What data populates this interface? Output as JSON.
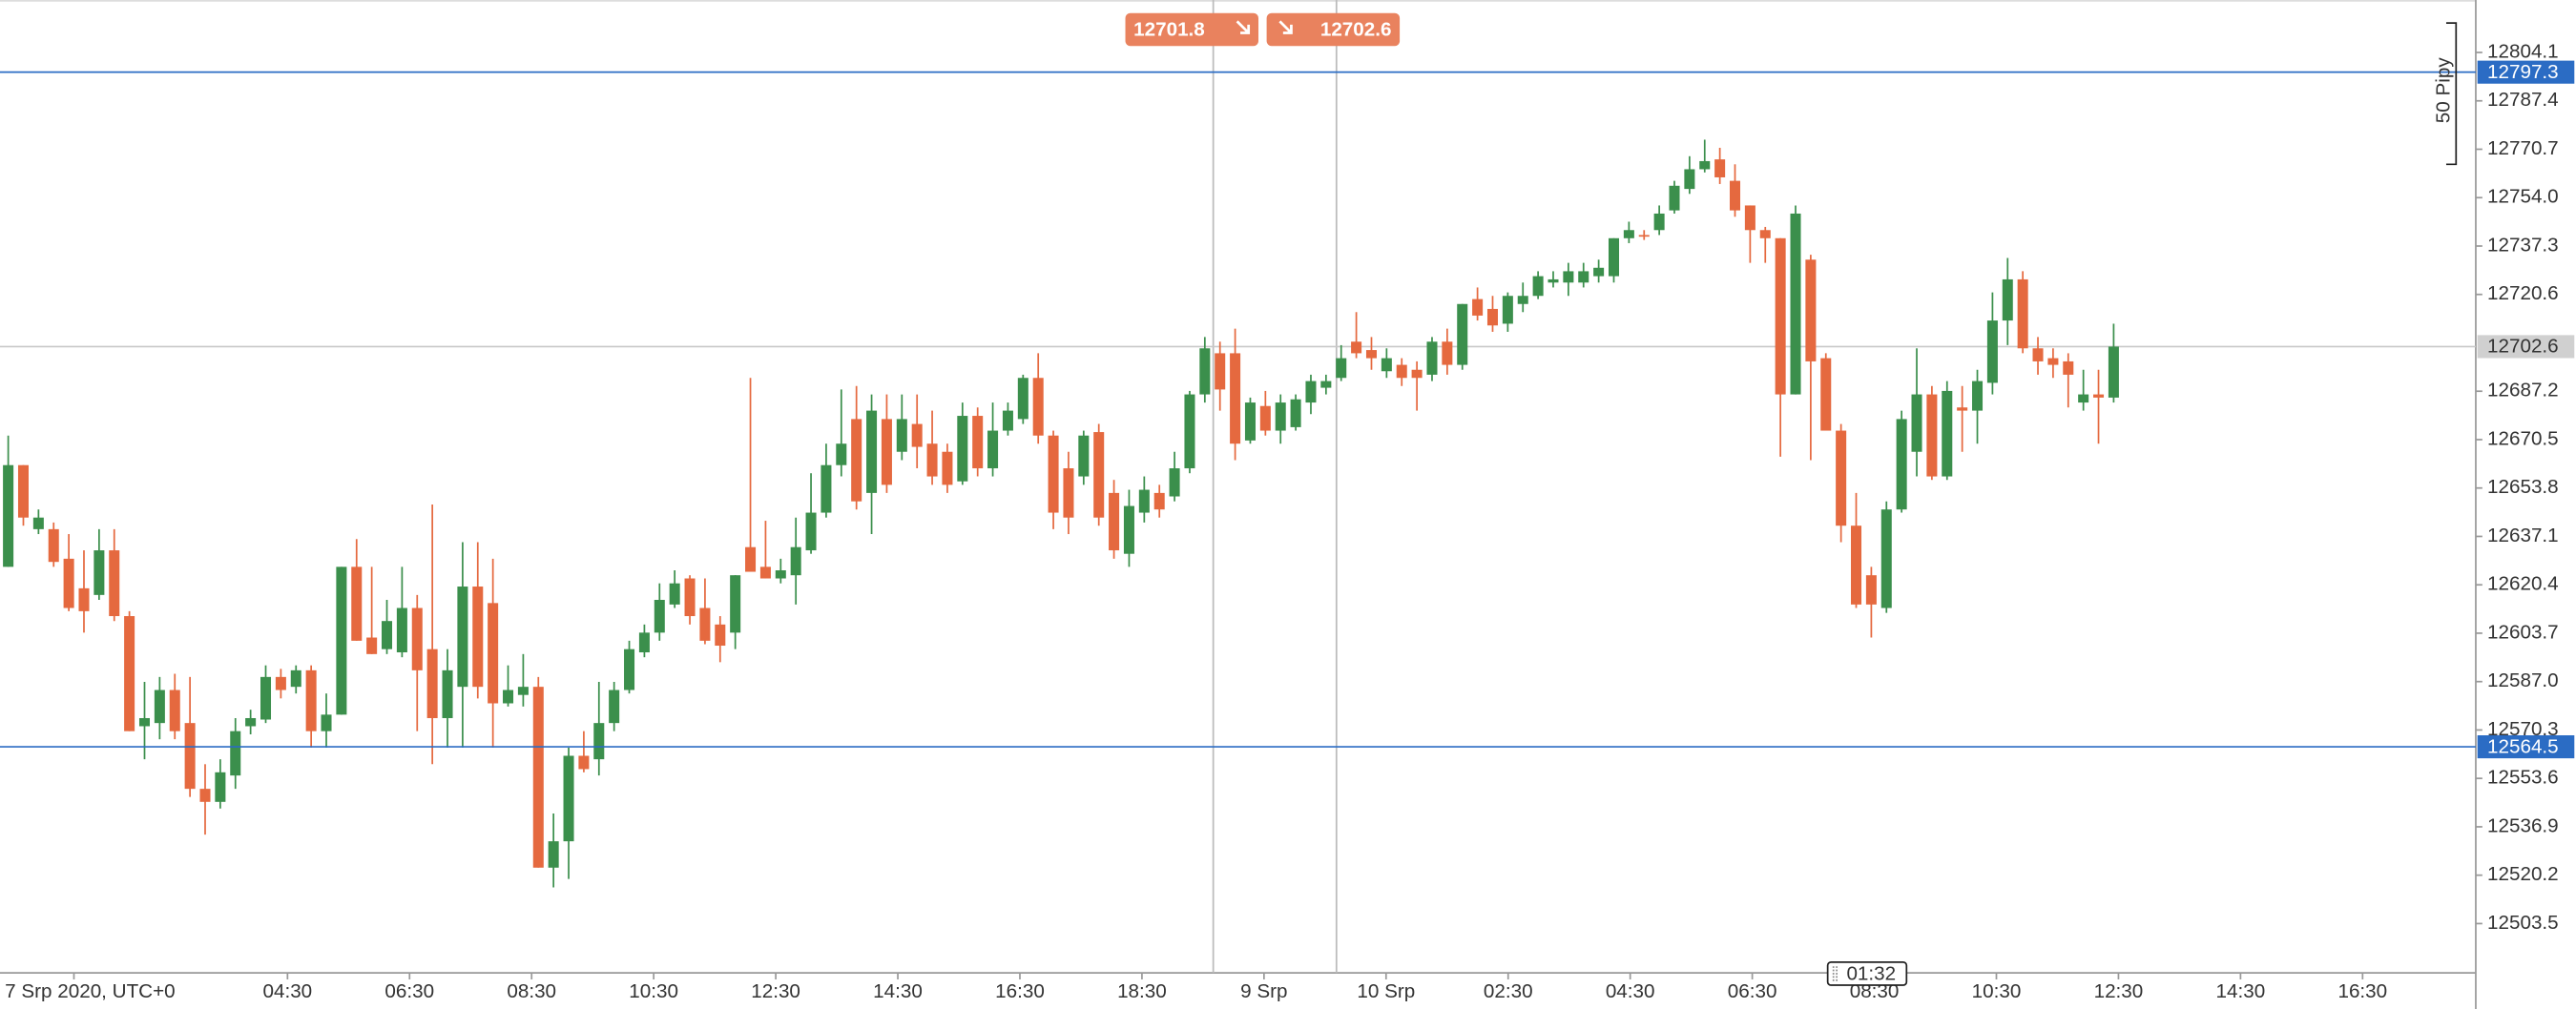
{
  "chart_data": {
    "type": "candlestick",
    "up_color": "#3b8f4c",
    "down_color": "#e5693f",
    "ylim": [
      12486.5,
      12822.2
    ],
    "yticks": [
      12804.1,
      12787.4,
      12770.7,
      {
        "value": 12754,
        "label": "12754.0"
      },
      12737.3,
      12720.6,
      12687.2,
      12670.5,
      12653.8,
      12637.1,
      12620.4,
      12603.7,
      {
        "value": 12587,
        "label": "12587.0"
      },
      12570.3,
      12553.6,
      12536.9,
      12520.2,
      12503.5
    ],
    "x_labels": [
      "7 Srp 2020, UTC+0",
      "04:30",
      "06:30",
      "08:30",
      "10:30",
      "12:30",
      "14:30",
      "16:30",
      "18:30",
      "9 Srp",
      "10 Srp",
      "02:30",
      "04:30",
      "06:30",
      "08:30",
      "10:30",
      "12:30",
      "14:30",
      "16:30"
    ],
    "levels": [
      {
        "value": 12797.3,
        "color": "#2b6cc4"
      },
      {
        "value": 12564.5,
        "color": "#2b6cc4"
      }
    ],
    "last_price": 12702.6,
    "sell_price": 12701.8,
    "buy_price": 12702.6,
    "ruler_label": "50 Pipy",
    "cursor_time": "01:32",
    "open": [
      12626.6,
      12661.7,
      12639.6,
      12639.6,
      12629.4,
      12619.2,
      12616.9,
      12632.3,
      12609.6,
      12571.6,
      12572.7,
      12584.1,
      12572.7,
      12550.0,
      12545.5,
      12554.6,
      12571.6,
      12573.9,
      12588.6,
      12585.2,
      12590.9,
      12569.9,
      12575.6,
      12626.6,
      12602.2,
      12598.2,
      12597.1,
      12612.4,
      12598.2,
      12574.4,
      12585.2,
      12619.8,
      12614.1,
      12579.5,
      12582.4,
      12585.2,
      12522.8,
      12531.9,
      12561.4,
      12560.2,
      12572.7,
      12584.1,
      12597.1,
      12603.9,
      12613.6,
      12622.6,
      12612.4,
      12606.7,
      12603.9,
      12633.4,
      12626.6,
      12622.6,
      12623.7,
      12632.3,
      12645.3,
      12661.7,
      12677.6,
      12652.1,
      12677.6,
      12666.3,
      12675.9,
      12669.1,
      12666.3,
      12656.1,
      12678.7,
      12660.6,
      12673.6,
      12677.6,
      12691.8,
      12671.9,
      12660.6,
      12657.8,
      12673.1,
      12652.1,
      12631.1,
      12645.3,
      12652.1,
      12650.9,
      12660.6,
      12686.1,
      12700.3,
      12700.3,
      12670.2,
      12682.1,
      12673.6,
      12674.8,
      12683.3,
      12688.4,
      12691.8,
      12704.3,
      12701.4,
      12694.1,
      12696.3,
      12694.6,
      12692.9,
      12704.3,
      12696.3,
      12719.0,
      12715.6,
      12710.5,
      12717.3,
      12720.1,
      12724.7,
      12724.7,
      12724.7,
      12726.9,
      12726.9,
      12740.0,
      12741.1,
      12742.8,
      12749.6,
      12757.0,
      12763.8,
      12767.2,
      12759.8,
      12751.3,
      12742.8,
      12740.0,
      12686.1,
      12732.6,
      12698.6,
      12673.6,
      12640.8,
      12623.7,
      12612.4,
      12646.4,
      12666.3,
      12686.1,
      12657.8,
      12681.6,
      12680.5,
      12690.1,
      12711.6,
      12725.8,
      12702.0,
      12698.6,
      12697.5,
      12683.3,
      12686.1,
      12685.0
    ],
    "high": [
      12671.9,
      12661.7,
      12646.4,
      12641.9,
      12637.9,
      12632.3,
      12639.6,
      12639.6,
      12611.3,
      12586.9,
      12588.6,
      12589.7,
      12588.6,
      12558.5,
      12560.2,
      12574.4,
      12577.3,
      12592.6,
      12591.4,
      12592.6,
      12592.6,
      12582.9,
      12626.6,
      12636.2,
      12626.6,
      12615.2,
      12626.6,
      12616.9,
      12648.1,
      12598.2,
      12635.1,
      12635.1,
      12629.4,
      12592.6,
      12596.5,
      12588.6,
      12541.5,
      12564.2,
      12569.9,
      12586.9,
      12586.9,
      12601.1,
      12606.7,
      12620.9,
      12625.4,
      12623.7,
      12622.6,
      12609.6,
      12623.7,
      12691.8,
      12642.5,
      12629.4,
      12643.6,
      12658.9,
      12669.1,
      12687.8,
      12689.0,
      12686.1,
      12686.1,
      12686.1,
      12686.1,
      12680.5,
      12669.1,
      12683.3,
      12681.6,
      12683.3,
      12683.3,
      12692.9,
      12700.3,
      12673.6,
      12666.3,
      12673.6,
      12675.9,
      12656.6,
      12653.2,
      12657.8,
      12654.9,
      12666.3,
      12687.3,
      12705.9,
      12704.3,
      12708.8,
      12685.0,
      12687.3,
      12686.1,
      12686.1,
      12692.9,
      12692.9,
      12703.1,
      12714.5,
      12705.9,
      12702.0,
      12698.6,
      12697.5,
      12705.9,
      12708.8,
      12717.3,
      12723.0,
      12720.1,
      12721.3,
      12724.7,
      12728.6,
      12728.6,
      12731.5,
      12731.5,
      12732.6,
      12740.0,
      12745.7,
      12742.8,
      12751.3,
      12759.8,
      12768.3,
      12774.0,
      12771.2,
      12765.5,
      12751.3,
      12743.9,
      12740.0,
      12751.3,
      12734.3,
      12700.3,
      12675.9,
      12652.1,
      12626.6,
      12649.2,
      12680.5,
      12702.0,
      12689.0,
      12690.7,
      12689.0,
      12694.6,
      12721.3,
      12733.2,
      12728.6,
      12705.9,
      12702.0,
      12700.3,
      12694.6,
      12694.6,
      12710.5
    ],
    "low": [
      12626.6,
      12640.8,
      12637.9,
      12626.6,
      12611.3,
      12603.9,
      12615.2,
      12607.9,
      12569.9,
      12560.2,
      12567.1,
      12567.1,
      12547.2,
      12534.2,
      12543.2,
      12550.0,
      12568.8,
      12572.7,
      12581.2,
      12582.9,
      12564.2,
      12564.2,
      12575.6,
      12601.1,
      12596.5,
      12596.5,
      12595.4,
      12569.9,
      12558.5,
      12564.2,
      12564.2,
      12581.2,
      12564.2,
      12578.4,
      12578.4,
      12522.8,
      12516.0,
      12518.9,
      12555.7,
      12554.6,
      12569.9,
      12582.9,
      12595.4,
      12601.1,
      12612.4,
      12606.7,
      12599.9,
      12593.7,
      12598.2,
      12624.9,
      12622.6,
      12620.9,
      12613.6,
      12631.1,
      12643.6,
      12657.8,
      12646.4,
      12637.9,
      12652.1,
      12663.4,
      12660.6,
      12654.9,
      12652.1,
      12654.9,
      12657.8,
      12657.8,
      12671.9,
      12675.9,
      12669.1,
      12639.6,
      12637.9,
      12654.9,
      12640.8,
      12629.4,
      12626.6,
      12641.9,
      12643.6,
      12649.2,
      12658.9,
      12683.3,
      12680.5,
      12663.4,
      12669.1,
      12671.9,
      12669.1,
      12673.6,
      12679.3,
      12686.1,
      12690.7,
      12698.6,
      12694.6,
      12691.8,
      12689.0,
      12680.5,
      12690.7,
      12692.9,
      12694.6,
      12711.6,
      12707.7,
      12707.7,
      12714.5,
      12719.0,
      12723.0,
      12720.1,
      12723.0,
      12724.7,
      12724.7,
      12738.3,
      12739.4,
      12741.1,
      12748.5,
      12755.3,
      12762.7,
      12758.7,
      12747.4,
      12731.5,
      12731.5,
      12664.6,
      12686.1,
      12663.4,
      12673.6,
      12635.1,
      12612.4,
      12602.2,
      12610.7,
      12645.3,
      12657.8,
      12656.6,
      12656.6,
      12666.3,
      12669.1,
      12686.1,
      12703.1,
      12700.3,
      12692.9,
      12691.8,
      12681.6,
      12680.5,
      12669.1,
      12683.3
    ],
    "close": [
      12661.7,
      12643.6,
      12643.6,
      12628.3,
      12612.4,
      12611.3,
      12632.3,
      12609.6,
      12569.9,
      12574.4,
      12584.1,
      12569.9,
      12550.0,
      12545.5,
      12555.7,
      12569.9,
      12574.4,
      12588.6,
      12584.1,
      12590.9,
      12569.9,
      12575.6,
      12626.6,
      12601.1,
      12596.5,
      12607.9,
      12612.4,
      12590.9,
      12574.4,
      12590.9,
      12619.8,
      12585.2,
      12579.5,
      12584.1,
      12585.2,
      12522.8,
      12531.9,
      12561.4,
      12556.8,
      12572.7,
      12584.1,
      12598.2,
      12603.9,
      12615.2,
      12620.9,
      12609.6,
      12601.1,
      12599.4,
      12623.7,
      12624.9,
      12622.6,
      12625.4,
      12633.4,
      12645.3,
      12661.7,
      12669.1,
      12649.2,
      12680.5,
      12654.9,
      12677.6,
      12668.0,
      12657.8,
      12654.9,
      12678.7,
      12660.6,
      12673.6,
      12680.5,
      12691.8,
      12671.9,
      12645.3,
      12643.6,
      12671.9,
      12643.6,
      12632.3,
      12647.6,
      12653.2,
      12646.4,
      12660.6,
      12686.1,
      12702.0,
      12687.8,
      12669.1,
      12683.3,
      12673.6,
      12683.3,
      12684.4,
      12690.7,
      12690.7,
      12698.6,
      12700.3,
      12698.6,
      12698.6,
      12691.8,
      12691.8,
      12704.3,
      12696.3,
      12717.3,
      12713.3,
      12709.9,
      12720.1,
      12720.1,
      12726.9,
      12725.8,
      12728.6,
      12728.6,
      12729.8,
      12740.0,
      12742.8,
      12740.6,
      12748.5,
      12758.1,
      12763.8,
      12766.6,
      12761.0,
      12749.6,
      12742.8,
      12740.0,
      12686.1,
      12748.5,
      12697.5,
      12673.6,
      12640.8,
      12613.6,
      12613.6,
      12646.4,
      12677.6,
      12686.1,
      12657.8,
      12687.3,
      12680.5,
      12690.7,
      12711.6,
      12725.8,
      12702.0,
      12697.5,
      12696.3,
      12692.9,
      12686.1,
      12685.0,
      12702.6
    ]
  }
}
